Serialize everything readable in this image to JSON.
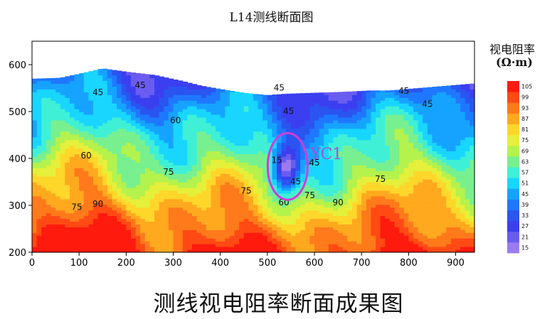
{
  "chart_data": {
    "type": "heatmap",
    "title": "L14测线断面图",
    "caption": "测线视电阻率断面成果图",
    "xlim": [
      0,
      940
    ],
    "ylim": [
      200,
      650
    ],
    "xticks": [
      "0",
      "100",
      "200",
      "300",
      "400",
      "500",
      "600",
      "700",
      "800",
      "900"
    ],
    "yticks": [
      "200",
      "300",
      "400",
      "500",
      "600"
    ],
    "colorbar": {
      "title": "视电阻率",
      "unit": "(Ω·m)",
      "levels": [
        15,
        21,
        27,
        33,
        39,
        45,
        51,
        57,
        63,
        69,
        75,
        81,
        87,
        93,
        99,
        105
      ],
      "colors": [
        "#9b7cf0",
        "#6a5cf0",
        "#3b3ff0",
        "#2a55f0",
        "#1f78ff",
        "#16a3ff",
        "#18d6ff",
        "#3ff0d6",
        "#78f08f",
        "#b4f24d",
        "#e5f03a",
        "#ffd72b",
        "#ffa91f",
        "#ff7a1a",
        "#ff4a14",
        "#ff1a0e"
      ]
    },
    "surface_elevation": [
      [
        0,
        570
      ],
      [
        60,
        572
      ],
      [
        120,
        585
      ],
      [
        150,
        592
      ],
      [
        200,
        585
      ],
      [
        260,
        578
      ],
      [
        320,
        565
      ],
      [
        360,
        555
      ],
      [
        400,
        548
      ],
      [
        450,
        540
      ],
      [
        500,
        535
      ],
      [
        540,
        538
      ],
      [
        600,
        540
      ],
      [
        660,
        542
      ],
      [
        720,
        545
      ],
      [
        760,
        545
      ],
      [
        820,
        550
      ],
      [
        880,
        555
      ],
      [
        940,
        560
      ]
    ],
    "anomaly": {
      "label": "YC1",
      "x": 540,
      "y": 380,
      "min_resistivity": 15
    },
    "contour_labels": [
      {
        "text": "45",
        "x": 140,
        "y": 535
      },
      {
        "text": "45",
        "x": 230,
        "y": 550
      },
      {
        "text": "60",
        "x": 305,
        "y": 475
      },
      {
        "text": "60",
        "x": 115,
        "y": 400
      },
      {
        "text": "75",
        "x": 290,
        "y": 365
      },
      {
        "text": "75",
        "x": 95,
        "y": 290
      },
      {
        "text": "90",
        "x": 140,
        "y": 297
      },
      {
        "text": "75",
        "x": 455,
        "y": 325
      },
      {
        "text": "45",
        "x": 525,
        "y": 545
      },
      {
        "text": "45",
        "x": 545,
        "y": 495
      },
      {
        "text": "45",
        "x": 600,
        "y": 385
      },
      {
        "text": "15",
        "x": 520,
        "y": 390
      },
      {
        "text": "45",
        "x": 560,
        "y": 345
      },
      {
        "text": "60",
        "x": 535,
        "y": 300
      },
      {
        "text": "75",
        "x": 590,
        "y": 315
      },
      {
        "text": "90",
        "x": 650,
        "y": 300
      },
      {
        "text": "75",
        "x": 740,
        "y": 350
      },
      {
        "text": "45",
        "x": 790,
        "y": 538
      },
      {
        "text": "45",
        "x": 840,
        "y": 510
      }
    ]
  }
}
